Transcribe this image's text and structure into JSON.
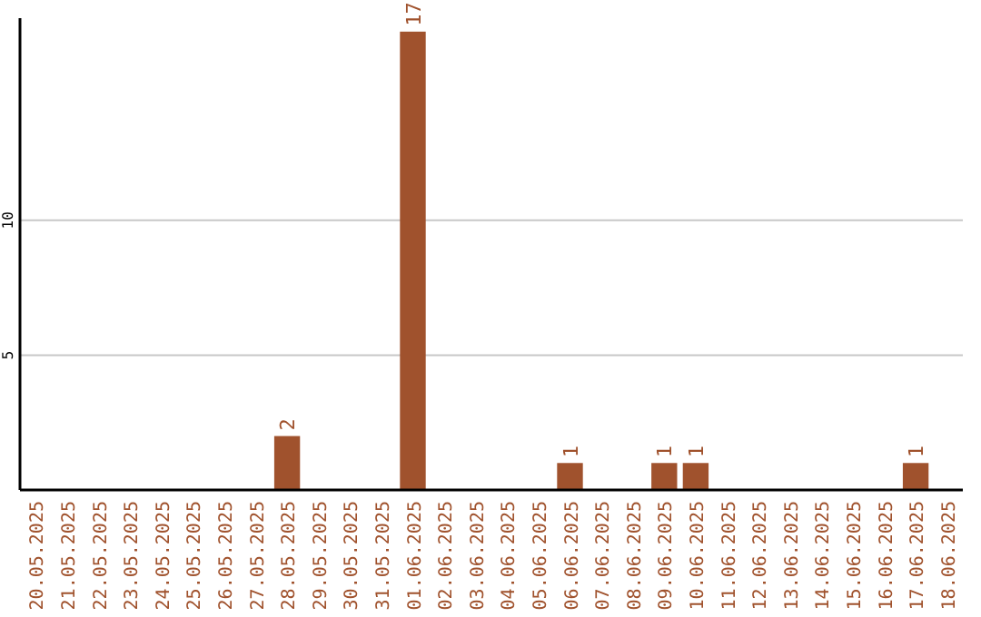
{
  "chart_data": {
    "type": "bar",
    "categories": [
      "20.05.2025",
      "21.05.2025",
      "22.05.2025",
      "23.05.2025",
      "24.05.2025",
      "25.05.2025",
      "26.05.2025",
      "27.05.2025",
      "28.05.2025",
      "29.05.2025",
      "30.05.2025",
      "31.05.2025",
      "01.06.2025",
      "02.06.2025",
      "03.06.2025",
      "04.06.2025",
      "05.06.2025",
      "06.06.2025",
      "07.06.2025",
      "08.06.2025",
      "09.06.2025",
      "10.06.2025",
      "11.06.2025",
      "12.06.2025",
      "13.06.2025",
      "14.06.2025",
      "15.06.2025",
      "16.06.2025",
      "17.06.2025",
      "18.06.2025"
    ],
    "values": [
      0,
      0,
      0,
      0,
      0,
      0,
      0,
      0,
      2,
      0,
      0,
      0,
      17,
      0,
      0,
      0,
      0,
      1,
      0,
      0,
      1,
      1,
      0,
      0,
      0,
      0,
      0,
      0,
      1,
      0
    ],
    "value_labels": [
      null,
      null,
      null,
      null,
      null,
      null,
      null,
      null,
      "2",
      null,
      null,
      null,
      "17",
      null,
      null,
      null,
      null,
      "1",
      null,
      null,
      "1",
      "1",
      null,
      null,
      null,
      null,
      null,
      null,
      "1",
      null
    ],
    "color": "#a0522d",
    "ylim": [
      0,
      17.5
    ],
    "yticks": [
      5,
      10
    ],
    "grid": "y"
  }
}
